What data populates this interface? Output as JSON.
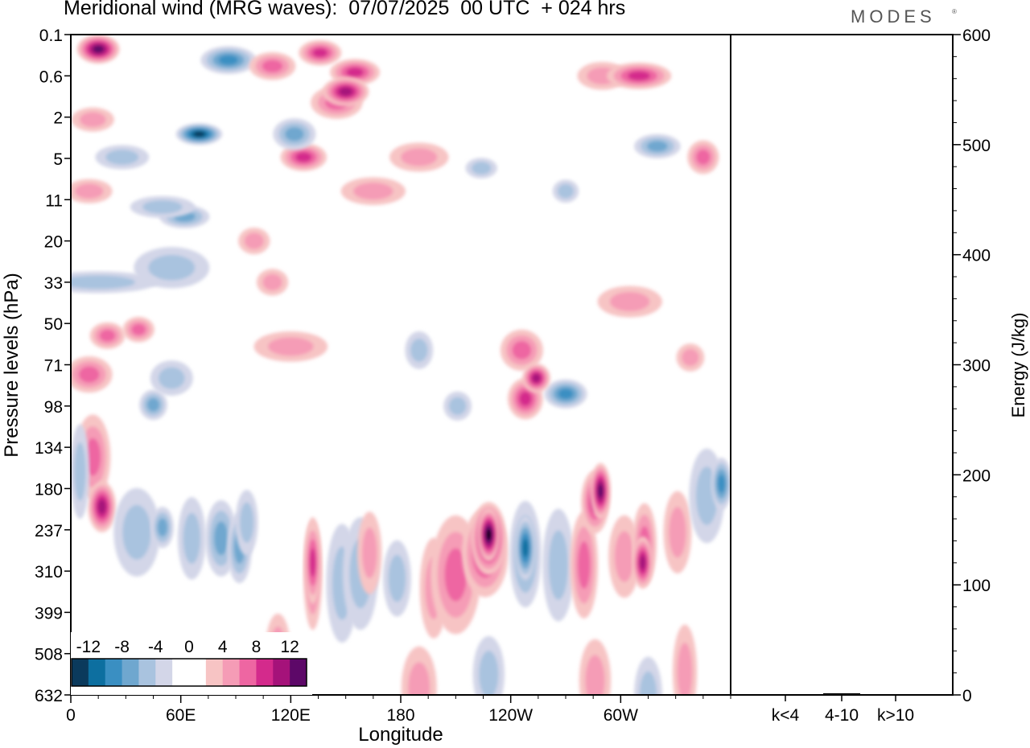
{
  "header": {
    "title": "Meridional wind (MRG waves):  07/07/2025  00 UTC  + 024 hrs",
    "brand": "MODES",
    "brand_mark": "®"
  },
  "chart_data": [
    {
      "type": "heatmap",
      "title": "Meridional wind (MRG waves):  07/07/2025  00 UTC  + 024 hrs",
      "xlabel": "Longitude",
      "ylabel": "Pressure levels (hPa)",
      "x_ticks": [
        "0",
        "60E",
        "120E",
        "180",
        "120W",
        "60W"
      ],
      "y_ticks": [
        "0.1",
        "0.6",
        "2",
        "5",
        "11",
        "20",
        "33",
        "50",
        "71",
        "98",
        "134",
        "180",
        "237",
        "310",
        "399",
        "508",
        "632"
      ],
      "colorbar": {
        "labels": [
          "-12",
          "-8",
          "-4",
          "0",
          "4",
          "8",
          "12"
        ],
        "colors": [
          "#0b3a5c",
          "#0d6fa0",
          "#3a8fc2",
          "#6fa7cf",
          "#a9c3df",
          "#d3d6e8",
          "#ffffff",
          "#ffffff",
          "#f7c4c4",
          "#f59cb6",
          "#ee66a2",
          "#d42a8c",
          "#a5127a",
          "#5d0868"
        ]
      },
      "blobs": [
        {
          "lon": 15,
          "lev": 1.2,
          "w": 18,
          "h": 1.6,
          "v": 10
        },
        {
          "lon": 70,
          "lev": 8.2,
          "w": 20,
          "h": 1.0,
          "v": -10
        },
        {
          "lon": 86,
          "lev": 2.1,
          "w": 25,
          "h": 1.5,
          "v": -6
        },
        {
          "lon": 110,
          "lev": 2.6,
          "w": 20,
          "h": 1.5,
          "v": 5
        },
        {
          "lon": 136,
          "lev": 1.5,
          "w": 18,
          "h": 1.3,
          "v": 6
        },
        {
          "lon": 155,
          "lev": 3.1,
          "w": 22,
          "h": 1.4,
          "v": 6
        },
        {
          "lon": 145,
          "lev": 5.6,
          "w": 23,
          "h": 1.9,
          "v": 5
        },
        {
          "lon": 150,
          "lev": 4.7,
          "w": 20,
          "h": 1.6,
          "v": 8
        },
        {
          "lon": 127,
          "lev": 10.1,
          "w": 20,
          "h": 1.5,
          "v": 6
        },
        {
          "lon": 122,
          "lev": 8.2,
          "w": 18,
          "h": 1.8,
          "v": -4
        },
        {
          "lon": 28,
          "lev": 10.1,
          "w": 24,
          "h": 1.2,
          "v": -3
        },
        {
          "lon": 62,
          "lev": 15,
          "w": 22,
          "h": 1.1,
          "v": -4
        },
        {
          "lon": 165,
          "lev": 12.9,
          "w": 30,
          "h": 1.5,
          "v": 3
        },
        {
          "lon": 190,
          "lev": 10.1,
          "w": 27,
          "h": 1.6,
          "v": 3
        },
        {
          "lon": 224,
          "lev": 11,
          "w": 12,
          "h": 0.9,
          "v": -3
        },
        {
          "lon": 270,
          "lev": 12.9,
          "w": 9,
          "h": 1.1,
          "v": -3
        },
        {
          "lon": 290,
          "lev": 3.4,
          "w": 22,
          "h": 1.5,
          "v": 3
        },
        {
          "lon": 310,
          "lev": 3.4,
          "w": 30,
          "h": 1.4,
          "v": 6
        },
        {
          "lon": 320,
          "lev": 9.2,
          "w": 20,
          "h": 1.2,
          "v": -5
        },
        {
          "lon": 345,
          "lev": 10.1,
          "w": 12,
          "h": 2.0,
          "v": 5
        },
        {
          "lon": 10,
          "lev": 12.9,
          "w": 20,
          "h": 1.2,
          "v": 3
        },
        {
          "lon": 20,
          "lev": 24.8,
          "w": 14,
          "h": 1.4,
          "v": 5
        },
        {
          "lon": 37,
          "lev": 24.3,
          "w": 12,
          "h": 1.3,
          "v": 5
        },
        {
          "lon": 55,
          "lev": 19.2,
          "w": 36,
          "h": 2.6,
          "v": -3
        },
        {
          "lon": 15,
          "lev": 20.4,
          "w": 60,
          "h": 1.0,
          "v": -2
        },
        {
          "lon": 50,
          "lev": 14.2,
          "w": 30,
          "h": 1.0,
          "v": -2
        },
        {
          "lon": 10,
          "lev": 28,
          "w": 20,
          "h": 2.2,
          "v": 4
        },
        {
          "lon": 120,
          "lev": 25.7,
          "w": 35,
          "h": 1.7,
          "v": 3
        },
        {
          "lon": 110,
          "lev": 20.4,
          "w": 12,
          "h": 1.4,
          "v": 3
        },
        {
          "lon": 55,
          "lev": 28.3,
          "w": 18,
          "h": 2.1,
          "v": -2
        },
        {
          "lon": 190,
          "lev": 26,
          "w": 10,
          "h": 2.3,
          "v": -3
        },
        {
          "lon": 211,
          "lev": 30.6,
          "w": 10,
          "h": 1.6,
          "v": -3
        },
        {
          "lon": 246,
          "lev": 26,
          "w": 18,
          "h": 2.6,
          "v": 5
        },
        {
          "lon": 248,
          "lev": 30,
          "w": 14,
          "h": 2.6,
          "v": 7
        },
        {
          "lon": 270,
          "lev": 29.6,
          "w": 18,
          "h": 1.6,
          "v": -6
        },
        {
          "lon": 254,
          "lev": 28.3,
          "w": 10,
          "h": 1.6,
          "v": 9
        },
        {
          "lon": 338,
          "lev": 26.6,
          "w": 10,
          "h": 1.5,
          "v": 3
        },
        {
          "lon": 305,
          "lev": 22,
          "w": 30,
          "h": 1.8,
          "v": 2
        },
        {
          "lon": 12,
          "lev": 7.0,
          "w": 18,
          "h": 1.2,
          "v": 3
        },
        {
          "lon": 100,
          "lev": 17,
          "w": 12,
          "h": 1.4,
          "v": 3
        },
        {
          "lon": 12,
          "lev": 34.8,
          "w": 14,
          "h": 6.2,
          "v": 5
        },
        {
          "lon": 17,
          "lev": 38.9,
          "w": 10,
          "h": 3.4,
          "v": 8
        },
        {
          "lon": 5,
          "lev": 36,
          "w": 5,
          "h": 7.0,
          "v": -3
        },
        {
          "lon": 36,
          "lev": 41,
          "w": 20,
          "h": 6.5,
          "v": -3
        },
        {
          "lon": 45,
          "lev": 30.5,
          "w": 10,
          "h": 1.7,
          "v": -4
        },
        {
          "lon": 50,
          "lev": 40.6,
          "w": 7,
          "h": 2.6,
          "v": -5
        },
        {
          "lon": 66,
          "lev": 41.5,
          "w": 10,
          "h": 6.0,
          "v": -3
        },
        {
          "lon": 82,
          "lev": 41.5,
          "w": 12,
          "h": 5.5,
          "v": -4
        },
        {
          "lon": 92,
          "lev": 42.3,
          "w": 8,
          "h": 5.0,
          "v": -4
        },
        {
          "lon": 96,
          "lev": 40.2,
          "w": 7,
          "h": 4.6,
          "v": -3
        },
        {
          "lon": 113,
          "lev": 50.5,
          "w": 8,
          "h": 4.8,
          "v": 3
        },
        {
          "lon": 132,
          "lev": 44.4,
          "w": 5,
          "h": 8.5,
          "v": 4
        },
        {
          "lon": 132,
          "lev": 43.5,
          "w": 4,
          "h": 6.0,
          "v": 7
        },
        {
          "lon": 148,
          "lev": 45.2,
          "w": 12,
          "h": 9.0,
          "v": -3
        },
        {
          "lon": 158,
          "lev": 44.4,
          "w": 14,
          "h": 8.5,
          "v": -3
        },
        {
          "lon": 163,
          "lev": 42.7,
          "w": 8,
          "h": 6.0,
          "v": 3
        },
        {
          "lon": 178,
          "lev": 44.8,
          "w": 10,
          "h": 5.5,
          "v": -3
        },
        {
          "lon": 198,
          "lev": 45.6,
          "w": 10,
          "h": 7.5,
          "v": 3
        },
        {
          "lon": 210,
          "lev": 44.5,
          "w": 22,
          "h": 9.0,
          "v": 4
        },
        {
          "lon": 226,
          "lev": 42.7,
          "w": 20,
          "h": 6.5,
          "v": 7
        },
        {
          "lon": 228,
          "lev": 41.5,
          "w": 14,
          "h": 5.2,
          "v": 11
        },
        {
          "lon": 228,
          "lev": 41.2,
          "w": 7,
          "h": 3.5,
          "v": 14
        },
        {
          "lon": 248,
          "lev": 42.8,
          "w": 12,
          "h": 8.0,
          "v": -4
        },
        {
          "lon": 248,
          "lev": 42.3,
          "w": 6,
          "h": 4.5,
          "v": -9
        },
        {
          "lon": 266,
          "lev": 43.7,
          "w": 12,
          "h": 8.5,
          "v": -3
        },
        {
          "lon": 280,
          "lev": 43.7,
          "w": 10,
          "h": 8.0,
          "v": 4
        },
        {
          "lon": 286,
          "lev": 38.5,
          "w": 10,
          "h": 4.4,
          "v": 6
        },
        {
          "lon": 289,
          "lev": 37.6,
          "w": 6,
          "h": 3.8,
          "v": 10
        },
        {
          "lon": 302,
          "lev": 43,
          "w": 12,
          "h": 6.0,
          "v": 3
        },
        {
          "lon": 313,
          "lev": 42,
          "w": 8,
          "h": 6.0,
          "v": 5
        },
        {
          "lon": 312,
          "lev": 43.5,
          "w": 6,
          "h": 3.5,
          "v": 8
        },
        {
          "lon": 331,
          "lev": 41,
          "w": 10,
          "h": 6.0,
          "v": 3
        },
        {
          "lon": 347,
          "lev": 38,
          "w": 14,
          "h": 7.0,
          "v": -3
        },
        {
          "lon": 355,
          "lev": 37,
          "w": 6,
          "h": 3.5,
          "v": -6
        },
        {
          "lon": 335,
          "lev": 52.5,
          "w": 8,
          "h": 7.0,
          "v": 3
        },
        {
          "lon": 315,
          "lev": 54.4,
          "w": 10,
          "h": 5.5,
          "v": -3
        },
        {
          "lon": 228,
          "lev": 52.7,
          "w": 12,
          "h": 5.5,
          "v": -2
        },
        {
          "lon": 190,
          "lev": 53.8,
          "w": 14,
          "h": 6.0,
          "v": 3
        },
        {
          "lon": 68,
          "lev": 54.4,
          "w": 8,
          "h": 5.5,
          "v": 3
        },
        {
          "lon": 286,
          "lev": 53.2,
          "w": 12,
          "h": 6.0,
          "v": 3
        }
      ]
    },
    {
      "type": "bar",
      "categories": [
        "k<4",
        "4-10",
        "k>10"
      ],
      "values": [
        0.3,
        1.5,
        0.3
      ],
      "ylabel": "Energy (J/kg)",
      "ylim": [
        0,
        600
      ],
      "y_ticks": [
        "0",
        "100",
        "200",
        "300",
        "400",
        "500",
        "600"
      ]
    }
  ]
}
